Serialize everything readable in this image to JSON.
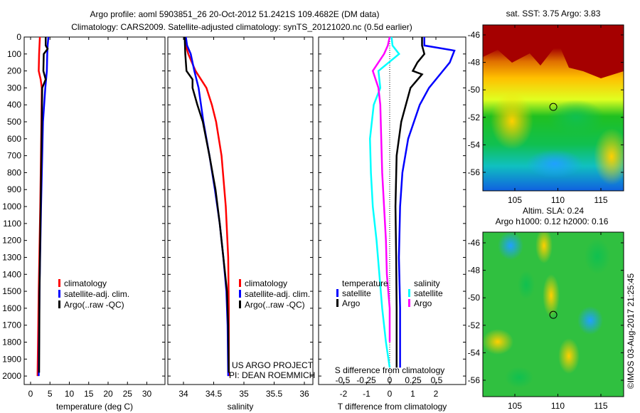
{
  "title_line1": "Argo profile: aoml 5903851_26 20-Oct-2012 51.2421S 109.4682E (DM data)",
  "title_line2": "Climatology: CARS2009. Satellite-adjusted climatology: synTS_20121020.nc (0.5d earlier)",
  "colors": {
    "climatology": "#ff0000",
    "satellite": "#0000ff",
    "argo": "#000000",
    "sal_satellite": "#00ffff",
    "sal_argo": "#ff00ff"
  },
  "chart_data": [
    {
      "type": "line",
      "xlabel": "temperature (deg C)",
      "ylabel": "",
      "xlim": [
        -2,
        32
      ],
      "ylim": [
        2050,
        0
      ],
      "xticks": [
        "0",
        "5",
        "10",
        "15",
        "20",
        "25",
        "30"
      ],
      "yticks": [
        "0",
        "100",
        "200",
        "300",
        "400",
        "500",
        "600",
        "700",
        "800",
        "900",
        "1000",
        "1100",
        "1200",
        "1300",
        "1400",
        "1500",
        "1600",
        "1700",
        "1800",
        "1900",
        "2000"
      ],
      "legend": [
        "climatology",
        "satellite-adj. clim.",
        "Argo(..raw -QC)"
      ],
      "series": [
        {
          "name": "climatology",
          "depth": [
            0,
            50,
            100,
            200,
            250,
            300,
            500,
            1000,
            1500,
            2000
          ],
          "values": [
            2.4,
            2.3,
            2.2,
            2.1,
            2.6,
            2.9,
            2.8,
            2.5,
            2.1,
            1.8
          ]
        },
        {
          "name": "satellite-adj. clim.",
          "depth": [
            0,
            50,
            100,
            200,
            300,
            500,
            1000,
            1500,
            2000
          ],
          "values": [
            4.6,
            4.4,
            4.3,
            4.2,
            3.8,
            3.2,
            2.7,
            2.3,
            2.1
          ]
        },
        {
          "name": "Argo(..raw -QC)",
          "depth": [
            0,
            50,
            70,
            100,
            200,
            250,
            300,
            500,
            1000,
            1500,
            1980
          ],
          "values": [
            3.9,
            3.9,
            4.4,
            3.4,
            3.3,
            3.9,
            3.0,
            2.9,
            2.6,
            2.3,
            2.2
          ]
        }
      ]
    },
    {
      "type": "line",
      "xlabel": "salinity",
      "xlim": [
        33.75,
        36.15
      ],
      "ylim": [
        2050,
        0
      ],
      "xticks": [
        "34",
        "34.5",
        "35",
        "35.5",
        "36"
      ],
      "legend": [
        "climatology",
        "satellite-adj. clim.",
        "Argo(..raw -QC)"
      ],
      "annotation": [
        "US ARGO PROJECT",
        "PI: DEAN ROEMMICH"
      ],
      "series": [
        {
          "name": "climatology",
          "depth": [
            0,
            50,
            100,
            200,
            300,
            400,
            500,
            700,
            1000,
            1300,
            1600,
            2000
          ],
          "values": [
            34.03,
            34.04,
            34.08,
            34.2,
            34.38,
            34.47,
            34.54,
            34.63,
            34.7,
            34.74,
            34.75,
            34.75
          ]
        },
        {
          "name": "satellite-adj. clim.",
          "depth": [
            0,
            50,
            100,
            200,
            300,
            500,
            700,
            900,
            1100,
            1300,
            1500,
            1700,
            2000
          ],
          "values": [
            34.04,
            34.06,
            34.12,
            34.18,
            34.25,
            34.33,
            34.43,
            34.52,
            34.6,
            34.66,
            34.71,
            34.73,
            34.74
          ]
        },
        {
          "name": "Argo(..raw -QC)",
          "depth": [
            0,
            100,
            200,
            250,
            300,
            400,
            500,
            700,
            900,
            1100,
            1300,
            1500,
            1700,
            1980
          ],
          "values": [
            34.02,
            34.03,
            34.05,
            34.15,
            34.15,
            34.23,
            34.32,
            34.43,
            34.53,
            34.6,
            34.66,
            34.72,
            34.74,
            34.75
          ]
        }
      ]
    },
    {
      "type": "line",
      "xlabel": "T difference from climatology",
      "x2label": "S difference from climatology",
      "xlim": [
        -3.0,
        3.3
      ],
      "x2lim": [
        -0.75,
        0.81
      ],
      "ylim": [
        2050,
        0
      ],
      "xticks": [
        "-2",
        "-1",
        "0",
        "1",
        "2"
      ],
      "x2ticks": [
        "-0.5",
        "-0.25",
        "0",
        "0.25",
        "0.5"
      ],
      "legend_titles": [
        "temperature",
        "salinity"
      ],
      "legend": [
        "satellite",
        "Argo",
        "satellite",
        "Argo"
      ],
      "series": [
        {
          "name": "T satellite",
          "axis": "T",
          "depth": [
            0,
            50,
            80,
            150,
            200,
            300,
            400,
            600,
            800,
            1000,
            1300,
            1600,
            1950
          ],
          "values": [
            1.5,
            1.5,
            2.8,
            2.6,
            2.3,
            1.7,
            1.3,
            0.8,
            0.55,
            0.45,
            0.4,
            0.45,
            0.45
          ]
        },
        {
          "name": "T Argo",
          "axis": "T",
          "depth": [
            0,
            50,
            100,
            150,
            200,
            220,
            300,
            400,
            500,
            700,
            1000,
            1300,
            1600,
            1950
          ],
          "values": [
            1.4,
            1.4,
            1.5,
            1.2,
            1.0,
            1.4,
            0.9,
            0.7,
            0.5,
            0.3,
            0.25,
            0.28,
            0.3,
            0.3
          ]
        },
        {
          "name": "S satellite",
          "axis": "S",
          "depth": [
            0,
            50,
            100,
            200,
            300,
            400,
            600,
            800,
            1000,
            1200,
            1400,
            1600,
            1800,
            1950
          ],
          "values": [
            0.02,
            0.03,
            0.1,
            -0.12,
            -0.1,
            -0.17,
            -0.21,
            -0.2,
            -0.18,
            -0.14,
            -0.11,
            -0.08,
            -0.04,
            0.0
          ]
        },
        {
          "name": "S Argo",
          "axis": "S",
          "depth": [
            0,
            50,
            100,
            200,
            300,
            400,
            600,
            800,
            1000,
            1200,
            1400,
            1600,
            1800
          ],
          "values": [
            0.0,
            -0.02,
            -0.06,
            -0.18,
            -0.12,
            -0.1,
            -0.09,
            -0.08,
            -0.06,
            -0.04,
            -0.03,
            0.0,
            0.0
          ]
        }
      ]
    },
    {
      "type": "heatmap",
      "title": "sat. SST: 3.75 Argo: 3.83",
      "xticks": [
        "105",
        "110",
        "115"
      ],
      "yticks": [
        "-46",
        "-48",
        "-50",
        "-52",
        "-54",
        "-56"
      ],
      "marker": {
        "lon": 109.47,
        "lat": -51.24
      }
    },
    {
      "type": "heatmap",
      "title_line1": "Altim. SLA: 0.24",
      "title_line2": "Argo h1000: 0.12 h2000: 0.16",
      "xticks": [
        "105",
        "110",
        "115"
      ],
      "yticks": [
        "-46",
        "-48",
        "-50",
        "-52",
        "-54",
        "-56"
      ],
      "marker": {
        "lon": 109.47,
        "lat": -51.24
      }
    }
  ],
  "credit": "©IMOS 03-Aug-2017 21:25:45"
}
